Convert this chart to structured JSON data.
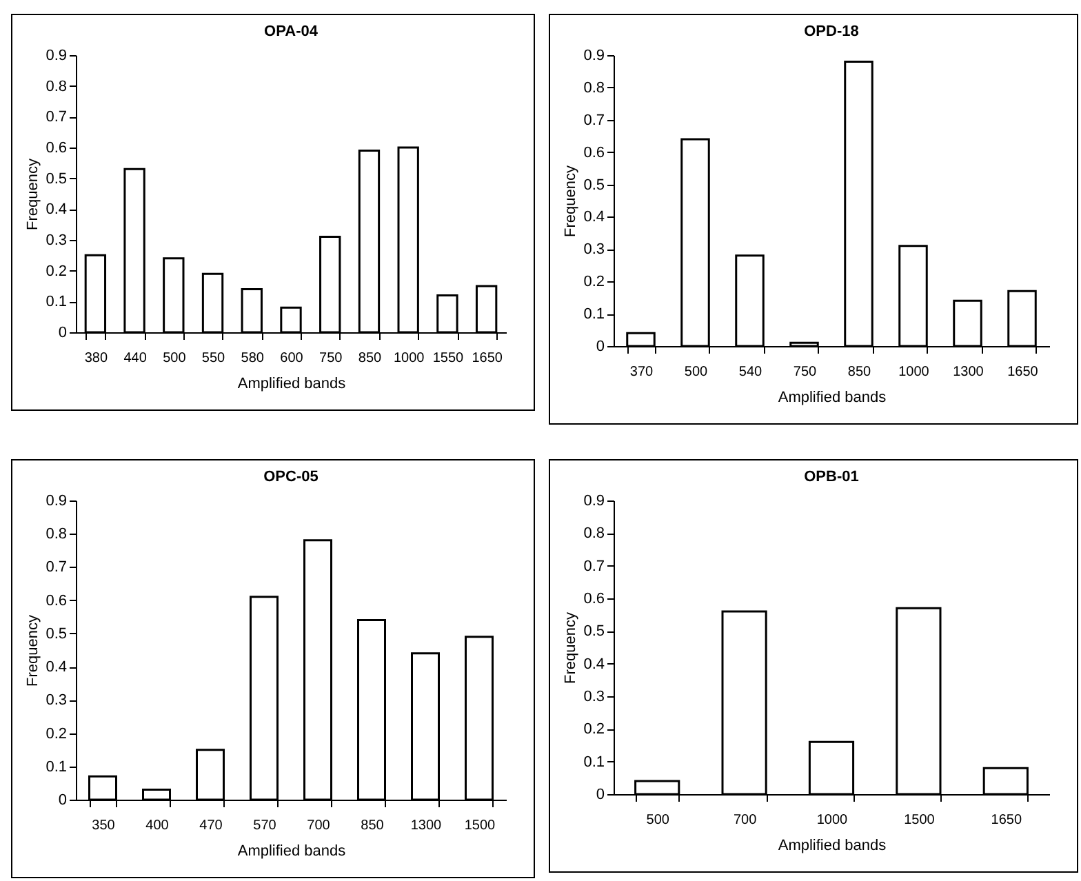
{
  "chart_data": [
    {
      "type": "bar",
      "title": "OPA-04",
      "xlabel": "Amplified bands",
      "ylabel": "Frequency",
      "categories": [
        "380",
        "440",
        "500",
        "550",
        "580",
        "600",
        "750",
        "850",
        "1000",
        "1550",
        "1650"
      ],
      "values": [
        0.25,
        0.53,
        0.24,
        0.19,
        0.14,
        0.08,
        0.31,
        0.59,
        0.6,
        0.12,
        0.15
      ],
      "color": "#ffffff",
      "ylim": [
        0,
        0.9
      ],
      "yticks": [
        0,
        0.1,
        0.2,
        0.3,
        0.4,
        0.5,
        0.6,
        0.7,
        0.8,
        0.9
      ],
      "grid": false
    },
    {
      "type": "bar",
      "title": "OPD-18",
      "xlabel": "Amplified bands",
      "ylabel": "Frequency",
      "categories": [
        "370",
        "500",
        "540",
        "750",
        "850",
        "1000",
        "1300",
        "1650"
      ],
      "values": [
        0.04,
        0.64,
        0.28,
        0.01,
        0.88,
        0.31,
        0.14,
        0.17
      ],
      "color": "#ffffff",
      "ylim": [
        0,
        0.9
      ],
      "yticks": [
        0,
        0.1,
        0.2,
        0.3,
        0.4,
        0.5,
        0.6,
        0.7,
        0.8,
        0.9
      ],
      "grid": false
    },
    {
      "type": "bar",
      "title": "OPC-05",
      "xlabel": "Amplified bands",
      "ylabel": "Frequency",
      "categories": [
        "350",
        "400",
        "470",
        "570",
        "700",
        "850",
        "1300",
        "1500"
      ],
      "values": [
        0.07,
        0.03,
        0.15,
        0.61,
        0.78,
        0.54,
        0.44,
        0.49
      ],
      "color": "#ffffff",
      "ylim": [
        0,
        0.9
      ],
      "yticks": [
        0,
        0.1,
        0.2,
        0.3,
        0.4,
        0.5,
        0.6,
        0.7,
        0.8,
        0.9
      ],
      "grid": false
    },
    {
      "type": "bar",
      "title": "OPB-01",
      "xlabel": "Amplified bands",
      "ylabel": "Frequency",
      "categories": [
        "500",
        "700",
        "1000",
        "1500",
        "1650"
      ],
      "values": [
        0.04,
        0.56,
        0.16,
        0.57,
        0.08
      ],
      "color": "#ffffff",
      "ylim": [
        0,
        0.9
      ],
      "yticks": [
        0,
        0.1,
        0.2,
        0.3,
        0.4,
        0.5,
        0.6,
        0.7,
        0.8,
        0.9
      ],
      "grid": false
    }
  ]
}
